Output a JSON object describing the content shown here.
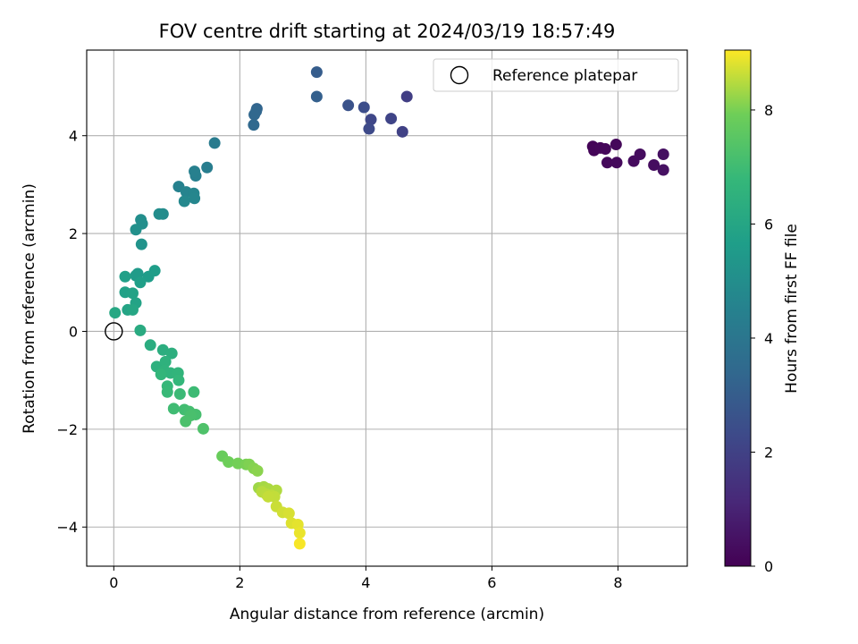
{
  "chart_data": {
    "type": "scatter",
    "title": "FOV centre drift starting at 2024/03/19 18:57:49",
    "xlabel": "Angular distance from reference (arcmin)",
    "ylabel": "Rotation from reference (arcmin)",
    "xlim": [
      -0.43,
      9.1
    ],
    "ylim": [
      -4.8,
      5.75
    ],
    "xticks": [
      0,
      2,
      4,
      6,
      8
    ],
    "yticks": [
      -4,
      -2,
      0,
      2,
      4
    ],
    "grid": true,
    "legend": {
      "location": "upper right",
      "entries": [
        "Reference platepar"
      ]
    },
    "reference_point": {
      "x": 0,
      "y": 0
    },
    "colorbar": {
      "label": "Hours from first FF file",
      "min": 0,
      "max": 9.05,
      "ticks": [
        0,
        2,
        4,
        6,
        8
      ],
      "colormap": "viridis"
    },
    "points": [
      {
        "x": 7.6,
        "y": 3.78,
        "c": 0.1
      },
      {
        "x": 7.62,
        "y": 3.7,
        "c": 0.12
      },
      {
        "x": 7.72,
        "y": 3.75,
        "c": 0.15
      },
      {
        "x": 7.8,
        "y": 3.73,
        "c": 0.18
      },
      {
        "x": 7.97,
        "y": 3.82,
        "c": 0.2
      },
      {
        "x": 7.83,
        "y": 3.45,
        "c": 0.22
      },
      {
        "x": 7.98,
        "y": 3.45,
        "c": 0.25
      },
      {
        "x": 8.25,
        "y": 3.48,
        "c": 0.3
      },
      {
        "x": 8.35,
        "y": 3.62,
        "c": 0.32
      },
      {
        "x": 8.57,
        "y": 3.4,
        "c": 0.35
      },
      {
        "x": 8.72,
        "y": 3.62,
        "c": 0.4
      },
      {
        "x": 8.72,
        "y": 3.3,
        "c": 0.45
      },
      {
        "x": 4.65,
        "y": 4.8,
        "c": 1.9
      },
      {
        "x": 4.58,
        "y": 4.08,
        "c": 2.0
      },
      {
        "x": 4.4,
        "y": 4.35,
        "c": 2.1
      },
      {
        "x": 4.08,
        "y": 4.33,
        "c": 2.2
      },
      {
        "x": 4.05,
        "y": 4.14,
        "c": 2.3
      },
      {
        "x": 3.97,
        "y": 4.58,
        "c": 2.4
      },
      {
        "x": 3.72,
        "y": 4.62,
        "c": 2.6
      },
      {
        "x": 3.22,
        "y": 5.3,
        "c": 3.0
      },
      {
        "x": 3.22,
        "y": 4.8,
        "c": 3.1
      },
      {
        "x": 2.27,
        "y": 4.55,
        "c": 3.3
      },
      {
        "x": 2.26,
        "y": 4.5,
        "c": 3.35
      },
      {
        "x": 2.23,
        "y": 4.43,
        "c": 3.4
      },
      {
        "x": 2.22,
        "y": 4.22,
        "c": 3.45
      },
      {
        "x": 1.6,
        "y": 3.85,
        "c": 4.2
      },
      {
        "x": 1.48,
        "y": 3.35,
        "c": 4.3
      },
      {
        "x": 1.3,
        "y": 3.18,
        "c": 4.4
      },
      {
        "x": 1.28,
        "y": 3.27,
        "c": 4.45
      },
      {
        "x": 1.03,
        "y": 2.96,
        "c": 4.5
      },
      {
        "x": 1.15,
        "y": 2.85,
        "c": 4.6
      },
      {
        "x": 1.27,
        "y": 2.82,
        "c": 4.65
      },
      {
        "x": 1.28,
        "y": 2.72,
        "c": 4.7
      },
      {
        "x": 1.12,
        "y": 2.66,
        "c": 4.75
      },
      {
        "x": 0.78,
        "y": 2.4,
        "c": 4.9
      },
      {
        "x": 0.72,
        "y": 2.4,
        "c": 4.95
      },
      {
        "x": 0.43,
        "y": 2.28,
        "c": 5.0
      },
      {
        "x": 0.45,
        "y": 2.2,
        "c": 5.05
      },
      {
        "x": 0.35,
        "y": 2.08,
        "c": 5.1
      },
      {
        "x": 0.44,
        "y": 1.78,
        "c": 5.2
      },
      {
        "x": 0.38,
        "y": 1.18,
        "c": 5.5
      },
      {
        "x": 0.35,
        "y": 1.14,
        "c": 5.55
      },
      {
        "x": 0.55,
        "y": 1.12,
        "c": 5.6
      },
      {
        "x": 0.65,
        "y": 1.24,
        "c": 5.65
      },
      {
        "x": 0.42,
        "y": 1.0,
        "c": 5.7
      },
      {
        "x": 0.18,
        "y": 1.12,
        "c": 5.75
      },
      {
        "x": 0.18,
        "y": 0.8,
        "c": 5.8
      },
      {
        "x": 0.3,
        "y": 0.78,
        "c": 5.85
      },
      {
        "x": 0.35,
        "y": 0.58,
        "c": 5.9
      },
      {
        "x": 0.22,
        "y": 0.44,
        "c": 5.95
      },
      {
        "x": 0.3,
        "y": 0.44,
        "c": 6.0
      },
      {
        "x": 0.02,
        "y": 0.38,
        "c": 6.05
      },
      {
        "x": 0.42,
        "y": 0.02,
        "c": 6.2
      },
      {
        "x": 0.58,
        "y": -0.28,
        "c": 6.3
      },
      {
        "x": 0.78,
        "y": -0.38,
        "c": 6.35
      },
      {
        "x": 0.92,
        "y": -0.45,
        "c": 6.4
      },
      {
        "x": 0.68,
        "y": -0.72,
        "c": 6.45
      },
      {
        "x": 0.82,
        "y": -0.62,
        "c": 6.5
      },
      {
        "x": 0.8,
        "y": -0.8,
        "c": 6.55
      },
      {
        "x": 0.9,
        "y": -0.85,
        "c": 6.6
      },
      {
        "x": 1.02,
        "y": -0.85,
        "c": 6.65
      },
      {
        "x": 0.75,
        "y": -0.88,
        "c": 6.7
      },
      {
        "x": 1.03,
        "y": -1.0,
        "c": 6.75
      },
      {
        "x": 0.85,
        "y": -1.12,
        "c": 6.8
      },
      {
        "x": 0.85,
        "y": -1.24,
        "c": 6.85
      },
      {
        "x": 1.05,
        "y": -1.28,
        "c": 6.9
      },
      {
        "x": 1.27,
        "y": -1.24,
        "c": 6.95
      },
      {
        "x": 0.95,
        "y": -1.58,
        "c": 7.0
      },
      {
        "x": 1.12,
        "y": -1.6,
        "c": 7.05
      },
      {
        "x": 1.2,
        "y": -1.64,
        "c": 7.1
      },
      {
        "x": 1.3,
        "y": -1.7,
        "c": 7.15
      },
      {
        "x": 1.22,
        "y": -1.72,
        "c": 7.2
      },
      {
        "x": 1.14,
        "y": -1.84,
        "c": 7.25
      },
      {
        "x": 1.42,
        "y": -1.99,
        "c": 7.3
      },
      {
        "x": 1.72,
        "y": -2.55,
        "c": 7.8
      },
      {
        "x": 1.82,
        "y": -2.67,
        "c": 7.9
      },
      {
        "x": 1.97,
        "y": -2.7,
        "c": 7.95
      },
      {
        "x": 2.1,
        "y": -2.72,
        "c": 8.0
      },
      {
        "x": 2.15,
        "y": -2.72,
        "c": 8.05
      },
      {
        "x": 2.22,
        "y": -2.8,
        "c": 8.1
      },
      {
        "x": 2.28,
        "y": -2.85,
        "c": 8.15
      },
      {
        "x": 2.3,
        "y": -3.2,
        "c": 8.3
      },
      {
        "x": 2.38,
        "y": -3.18,
        "c": 8.35
      },
      {
        "x": 2.45,
        "y": -3.22,
        "c": 8.4
      },
      {
        "x": 2.58,
        "y": -3.25,
        "c": 8.45
      },
      {
        "x": 2.35,
        "y": -3.28,
        "c": 8.5
      },
      {
        "x": 2.42,
        "y": -3.33,
        "c": 8.52
      },
      {
        "x": 2.5,
        "y": -3.35,
        "c": 8.55
      },
      {
        "x": 2.55,
        "y": -3.38,
        "c": 8.58
      },
      {
        "x": 2.45,
        "y": -3.38,
        "c": 8.6
      },
      {
        "x": 2.58,
        "y": -3.58,
        "c": 8.65
      },
      {
        "x": 2.68,
        "y": -3.7,
        "c": 8.7
      },
      {
        "x": 2.78,
        "y": -3.72,
        "c": 8.75
      },
      {
        "x": 2.82,
        "y": -3.92,
        "c": 8.8
      },
      {
        "x": 2.92,
        "y": -3.95,
        "c": 8.85
      },
      {
        "x": 2.95,
        "y": -4.12,
        "c": 8.9
      },
      {
        "x": 2.95,
        "y": -4.34,
        "c": 9.0
      }
    ]
  }
}
